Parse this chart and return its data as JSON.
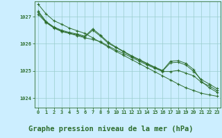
{
  "background_color": "#cceeff",
  "grid_color": "#99cccc",
  "line_color": "#2d6e2d",
  "title": "Graphe pression niveau de la mer (hPa)",
  "title_fontsize": 7.5,
  "ylim": [
    1023.65,
    1027.55
  ],
  "xlim": [
    -0.5,
    23.5
  ],
  "yticks": [
    1024,
    1025,
    1026,
    1027
  ],
  "xticks": [
    0,
    1,
    2,
    3,
    4,
    5,
    6,
    7,
    8,
    9,
    10,
    11,
    12,
    13,
    14,
    15,
    16,
    17,
    18,
    19,
    20,
    21,
    22,
    23
  ],
  "series": [
    [
      1027.45,
      1027.1,
      1026.85,
      1026.72,
      1026.58,
      1026.48,
      1026.38,
      1026.22,
      1026.05,
      1025.88,
      1025.72,
      1025.57,
      1025.42,
      1025.27,
      1025.12,
      1024.97,
      1024.82,
      1024.67,
      1024.52,
      1024.38,
      1024.28,
      1024.18,
      1024.12,
      1024.07
    ],
    [
      1027.2,
      1026.82,
      1026.62,
      1026.5,
      1026.42,
      1026.36,
      1026.28,
      1026.55,
      1026.32,
      1026.06,
      1025.88,
      1025.72,
      1025.56,
      1025.42,
      1025.28,
      1025.14,
      1025.02,
      1025.36,
      1025.38,
      1025.28,
      1025.05,
      1024.62,
      1024.38,
      1024.22
    ],
    [
      1027.08,
      1026.78,
      1026.58,
      1026.45,
      1026.38,
      1026.3,
      1026.22,
      1026.16,
      1026.08,
      1025.92,
      1025.77,
      1025.64,
      1025.5,
      1025.36,
      1025.22,
      1025.1,
      1024.98,
      1024.98,
      1025.02,
      1024.92,
      1024.82,
      1024.58,
      1024.45,
      1024.28
    ],
    [
      1027.15,
      1026.8,
      1026.6,
      1026.47,
      1026.39,
      1026.33,
      1026.25,
      1026.5,
      1026.28,
      1026.02,
      1025.86,
      1025.7,
      1025.54,
      1025.4,
      1025.26,
      1025.12,
      1025.0,
      1025.3,
      1025.32,
      1025.22,
      1024.98,
      1024.68,
      1024.52,
      1024.35
    ]
  ]
}
